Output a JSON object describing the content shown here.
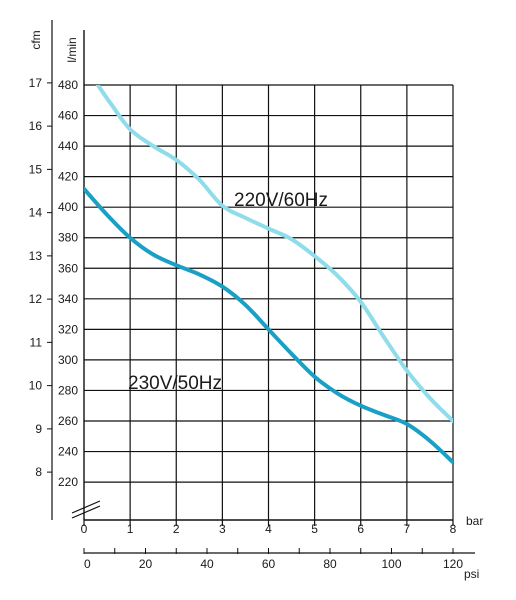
{
  "chart_data": {
    "type": "line",
    "title": "",
    "x_primary": {
      "label": "bar",
      "min": 0,
      "max": 8,
      "ticks": [
        0,
        1,
        2,
        3,
        4,
        5,
        6,
        7,
        8
      ]
    },
    "x_secondary": {
      "label": "psi",
      "min": 0,
      "max": 120,
      "ticks": [
        0,
        20,
        40,
        60,
        80,
        100,
        120
      ],
      "minor_step": 10
    },
    "y_left": {
      "label": "cfm",
      "ticks": [
        8,
        9,
        10,
        11,
        12,
        13,
        14,
        15,
        16,
        17
      ]
    },
    "y_inner": {
      "label": "l/min",
      "min": 205,
      "max": 480,
      "ticks": [
        220,
        240,
        260,
        280,
        300,
        320,
        340,
        360,
        380,
        400,
        420,
        440,
        460,
        480
      ]
    },
    "grid": true,
    "axis_break": true,
    "series": [
      {
        "name": "220V/60Hz",
        "color": "#8fdcea",
        "x": [
          0.3,
          0.6,
          1.0,
          1.5,
          2.0,
          2.5,
          3.0,
          3.5,
          4.0,
          4.5,
          5.0,
          5.5,
          6.0,
          6.5,
          7.0,
          7.5,
          8.0
        ],
        "y": [
          480,
          467,
          451,
          440,
          431,
          418,
          401,
          393,
          386,
          379,
          368,
          355,
          338,
          315,
          293,
          275,
          260
        ]
      },
      {
        "name": "230V/50Hz",
        "color": "#1aa0c4",
        "x": [
          0.0,
          0.5,
          1.0,
          1.5,
          2.0,
          2.5,
          3.0,
          3.5,
          4.0,
          4.5,
          5.0,
          5.5,
          6.0,
          6.5,
          7.0,
          7.5,
          8.0
        ],
        "y": [
          412,
          395,
          380,
          369,
          362,
          356,
          348,
          336,
          320,
          304,
          289,
          278,
          270,
          264,
          258,
          247,
          233
        ]
      }
    ]
  }
}
